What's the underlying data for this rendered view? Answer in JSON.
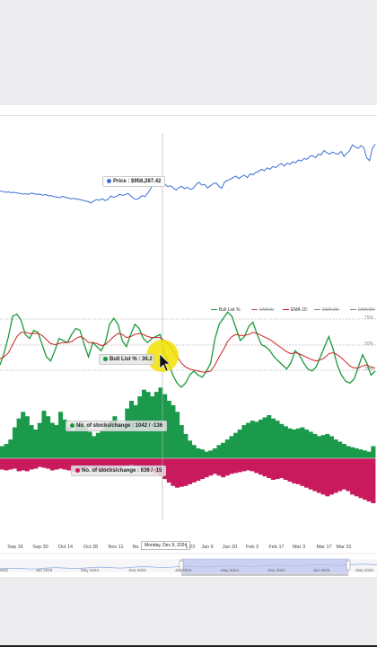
{
  "chart_data": {
    "type": "line",
    "price_series": {
      "name": "Price",
      "values": [
        94,
        92,
        90,
        91,
        89,
        90,
        88,
        87,
        85,
        86,
        84,
        88,
        86,
        84,
        85,
        82,
        84,
        80,
        81,
        78,
        77,
        75,
        79,
        76,
        74,
        72,
        73,
        71,
        70,
        68,
        66,
        64,
        60,
        66,
        70,
        68,
        72,
        67,
        70,
        80,
        76,
        79,
        84,
        82,
        83,
        87,
        80,
        73,
        70,
        74,
        81,
        78,
        88,
        100,
        114,
        112,
        116,
        118,
        112,
        106,
        108,
        102,
        96,
        104,
        106,
        100,
        104,
        98,
        101,
        112,
        118,
        110,
        112,
        102,
        108,
        114,
        116,
        107,
        101,
        119,
        123,
        126,
        131,
        135,
        128,
        134,
        138,
        131,
        141,
        139,
        145,
        148,
        154,
        150,
        158,
        154,
        162,
        158,
        166,
        170,
        163,
        171,
        168,
        175,
        172,
        180,
        177,
        184,
        182,
        190,
        192,
        186,
        196,
        194,
        206,
        200,
        196,
        202,
        198,
        196,
        204,
        190,
        198,
        206,
        222,
        216,
        212,
        220,
        214,
        186,
        178,
        212,
        224
      ],
      "y_range": [
        0,
        250
      ]
    },
    "bull_list": {
      "legend": [
        {
          "name": "Bull List %:",
          "color": "#1a9a3c",
          "visible": true
        },
        {
          "name": "EMA 5:",
          "color": "#cc4b4b",
          "visible": false
        },
        {
          "name": "EMA 10:",
          "color": "#cc2222",
          "visible": true
        },
        {
          "name": "EMA 20:",
          "color": "#888888",
          "visible": false
        },
        {
          "name": "EMA 50:",
          "color": "#888888",
          "visible": false
        }
      ],
      "levels": [
        "75%",
        "50%",
        "25%"
      ],
      "y_range": [
        0,
        100
      ],
      "bull_pct": [
        30,
        42,
        58,
        78,
        80,
        74,
        60,
        56,
        64,
        62,
        50,
        38,
        34,
        44,
        56,
        54,
        52,
        60,
        66,
        64,
        50,
        38,
        52,
        48,
        44,
        52,
        70,
        76,
        70,
        54,
        48,
        60,
        70,
        66,
        56,
        52,
        56,
        58,
        60,
        42,
        32,
        20,
        12,
        8,
        12,
        20,
        24,
        20,
        18,
        24,
        32,
        56,
        70,
        76,
        82,
        78,
        66,
        54,
        58,
        68,
        72,
        60,
        50,
        48,
        44,
        38,
        34,
        30,
        26,
        32,
        44,
        40,
        32,
        26,
        24,
        28,
        38,
        48,
        58,
        46,
        30,
        20,
        14,
        12,
        16,
        28,
        40,
        32,
        20,
        24
      ],
      "ema10": [
        36,
        38,
        42,
        50,
        58,
        62,
        62,
        61,
        61,
        61,
        59,
        55,
        51,
        50,
        51,
        52,
        52,
        53,
        56,
        58,
        56,
        52,
        52,
        51,
        49,
        50,
        54,
        58,
        61,
        60,
        57,
        58,
        60,
        61,
        60,
        58,
        57,
        57,
        57,
        54,
        50,
        44,
        38,
        32,
        28,
        26,
        25,
        24,
        23,
        23,
        24,
        30,
        38,
        45,
        53,
        58,
        60,
        59,
        59,
        60,
        62,
        61,
        59,
        57,
        55,
        52,
        49,
        46,
        43,
        41,
        42,
        41,
        39,
        37,
        35,
        34,
        35,
        37,
        41,
        42,
        40,
        37,
        33,
        29,
        27,
        27,
        29,
        30,
        28,
        27
      ]
    },
    "stocks_change": {
      "up": [
        110,
        130,
        170,
        280,
        360,
        420,
        380,
        300,
        260,
        320,
        430,
        380,
        320,
        300,
        420,
        350,
        280,
        250,
        300,
        330,
        280,
        240,
        200,
        230,
        260,
        300,
        340,
        380,
        320,
        300,
        450,
        520,
        480,
        560,
        620,
        600,
        560,
        600,
        640,
        580,
        520,
        480,
        420,
        300,
        220,
        160,
        120,
        90,
        80,
        60,
        70,
        90,
        120,
        140,
        170,
        200,
        230,
        260,
        300,
        320,
        340,
        330,
        350,
        370,
        390,
        360,
        340,
        310,
        290,
        270,
        260,
        270,
        280,
        260,
        240,
        220,
        200,
        210,
        220,
        200,
        170,
        150,
        130,
        110,
        100,
        90,
        80,
        70,
        60,
        110
      ],
      "down": [
        130,
        140,
        130,
        120,
        150,
        140,
        150,
        130,
        120,
        100,
        110,
        120,
        140,
        130,
        120,
        130,
        140,
        150,
        160,
        140,
        120,
        110,
        130,
        150,
        160,
        140,
        130,
        120,
        110,
        100,
        90,
        80,
        90,
        100,
        120,
        140,
        160,
        180,
        200,
        240,
        280,
        320,
        340,
        330,
        320,
        300,
        280,
        260,
        240,
        220,
        200,
        180,
        200,
        220,
        200,
        180,
        170,
        160,
        150,
        140,
        150,
        170,
        190,
        210,
        230,
        250,
        240,
        230,
        250,
        270,
        290,
        300,
        320,
        340,
        360,
        380,
        400,
        420,
        440,
        420,
        400,
        380,
        360,
        380,
        420,
        440,
        460,
        480,
        500,
        520
      ],
      "y_range": [
        -1000,
        1000
      ]
    },
    "tooltips": {
      "price": "Price : $958,287.42",
      "bull": "Bull List % : 36.2",
      "up": "No. of stocks/change : 1042 / -136",
      "down": "No. of stocks/change : 636 / -15",
      "date": "Monday, Dec 9, 2024"
    },
    "x_ticks": [
      "Sep 16",
      "Sep 30",
      "Oct 14",
      "Oct 28",
      "Nov 11",
      "No",
      "c 23",
      "Jan 6",
      "Jan 20",
      "Feb 3",
      "Feb 17",
      "Mar 3",
      "Mar 17",
      "Mar 31"
    ],
    "navigator_ticks": [
      "2022",
      "Jan 2023",
      "May 2023",
      "Sep 2023",
      "Jan 2024",
      "May 2024",
      "Sep 2024",
      "Jan 2025",
      "May 2025"
    ]
  }
}
